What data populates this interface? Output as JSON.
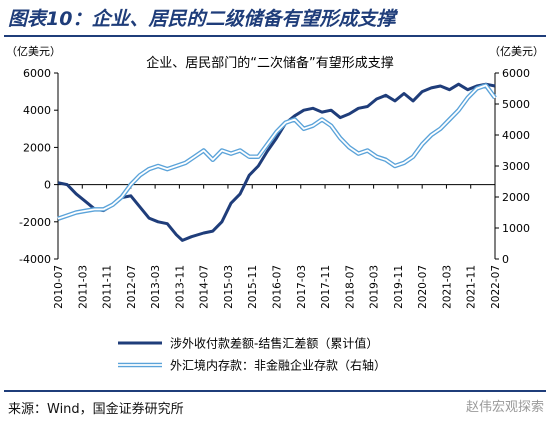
{
  "figure": {
    "heading": "图表10：企业、居民的二级储备有望形成支撑",
    "source": "来源：Wind，国金证券研究所",
    "watermark": "赵伟宏观探索"
  },
  "chart_data": {
    "type": "line",
    "title": "企业、居民部门的“二次储备”有望形成支撑",
    "y_left_unit": "（亿美元）",
    "y_right_unit": "（亿美元）",
    "y_left_lim": [
      -4000,
      6000
    ],
    "y_left_ticks": [
      "6000",
      "4000",
      "2000",
      "0",
      "-2000",
      "-4000"
    ],
    "y_right_lim": [
      0,
      6000
    ],
    "y_right_ticks": [
      "6000",
      "5000",
      "4000",
      "3000",
      "2000",
      "1000",
      "0"
    ],
    "x_ticks": [
      "2010-07",
      "2011-03",
      "2011-11",
      "2012-07",
      "2013-03",
      "2013-11",
      "2014-07",
      "2015-03",
      "2015-11",
      "2016-07",
      "2017-03",
      "2017-11",
      "2018-07",
      "2019-03",
      "2019-11",
      "2020-07",
      "2021-03",
      "2021-11",
      "2022-07"
    ],
    "legend_position": "bottom",
    "colors": {
      "left_series": "#1f3d7a",
      "right_series": "#5ba3d9",
      "axis": "#000000"
    },
    "series": [
      {
        "name": "涉外收付款差额-结售汇差额（累计值）",
        "axis": "left",
        "points": [
          [
            "2010-07",
            100
          ],
          [
            "2010-10",
            0
          ],
          [
            "2011-01",
            -500
          ],
          [
            "2011-04",
            -900
          ],
          [
            "2011-07",
            -1300
          ],
          [
            "2011-10",
            -1400
          ],
          [
            "2012-01",
            -1100
          ],
          [
            "2012-04",
            -700
          ],
          [
            "2012-07",
            -600
          ],
          [
            "2012-10",
            -1200
          ],
          [
            "2013-01",
            -1800
          ],
          [
            "2013-04",
            -2000
          ],
          [
            "2013-07",
            -2100
          ],
          [
            "2013-10",
            -2700
          ],
          [
            "2013-12",
            -3000
          ],
          [
            "2014-03",
            -2800
          ],
          [
            "2014-07",
            -2600
          ],
          [
            "2014-10",
            -2500
          ],
          [
            "2015-01",
            -2000
          ],
          [
            "2015-04",
            -1000
          ],
          [
            "2015-07",
            -500
          ],
          [
            "2015-10",
            500
          ],
          [
            "2016-01",
            1000
          ],
          [
            "2016-04",
            1800
          ],
          [
            "2016-07",
            2500
          ],
          [
            "2016-10",
            3300
          ],
          [
            "2017-01",
            3700
          ],
          [
            "2017-04",
            4000
          ],
          [
            "2017-07",
            4100
          ],
          [
            "2017-10",
            3900
          ],
          [
            "2018-01",
            4000
          ],
          [
            "2018-04",
            3600
          ],
          [
            "2018-07",
            3800
          ],
          [
            "2018-10",
            4100
          ],
          [
            "2019-01",
            4200
          ],
          [
            "2019-04",
            4600
          ],
          [
            "2019-07",
            4800
          ],
          [
            "2019-10",
            4500
          ],
          [
            "2020-01",
            4900
          ],
          [
            "2020-04",
            4500
          ],
          [
            "2020-07",
            5000
          ],
          [
            "2020-10",
            5200
          ],
          [
            "2021-01",
            5300
          ],
          [
            "2021-04",
            5100
          ],
          [
            "2021-07",
            5400
          ],
          [
            "2021-10",
            5100
          ],
          [
            "2022-01",
            5300
          ],
          [
            "2022-04",
            5400
          ],
          [
            "2022-07",
            5300
          ]
        ]
      },
      {
        "name": "外汇境内存款：非金融企业存款（右轴）",
        "axis": "right",
        "points": [
          [
            "2010-07",
            1300
          ],
          [
            "2010-10",
            1400
          ],
          [
            "2011-01",
            1500
          ],
          [
            "2011-04",
            1550
          ],
          [
            "2011-07",
            1600
          ],
          [
            "2011-10",
            1600
          ],
          [
            "2012-01",
            1750
          ],
          [
            "2012-04",
            2000
          ],
          [
            "2012-07",
            2400
          ],
          [
            "2012-10",
            2700
          ],
          [
            "2013-01",
            2900
          ],
          [
            "2013-04",
            3000
          ],
          [
            "2013-07",
            2900
          ],
          [
            "2013-10",
            3000
          ],
          [
            "2014-01",
            3100
          ],
          [
            "2014-04",
            3300
          ],
          [
            "2014-07",
            3500
          ],
          [
            "2014-10",
            3200
          ],
          [
            "2015-01",
            3500
          ],
          [
            "2015-04",
            3400
          ],
          [
            "2015-07",
            3500
          ],
          [
            "2015-10",
            3300
          ],
          [
            "2016-01",
            3300
          ],
          [
            "2016-04",
            3700
          ],
          [
            "2016-07",
            4100
          ],
          [
            "2016-10",
            4400
          ],
          [
            "2017-01",
            4500
          ],
          [
            "2017-04",
            4200
          ],
          [
            "2017-07",
            4300
          ],
          [
            "2017-10",
            4500
          ],
          [
            "2018-01",
            4300
          ],
          [
            "2018-04",
            3900
          ],
          [
            "2018-07",
            3600
          ],
          [
            "2018-10",
            3400
          ],
          [
            "2019-01",
            3500
          ],
          [
            "2019-04",
            3300
          ],
          [
            "2019-07",
            3200
          ],
          [
            "2019-10",
            3000
          ],
          [
            "2020-01",
            3100
          ],
          [
            "2020-04",
            3300
          ],
          [
            "2020-07",
            3700
          ],
          [
            "2020-10",
            4000
          ],
          [
            "2021-01",
            4200
          ],
          [
            "2021-04",
            4500
          ],
          [
            "2021-07",
            4800
          ],
          [
            "2021-10",
            5200
          ],
          [
            "2022-01",
            5500
          ],
          [
            "2022-04",
            5600
          ],
          [
            "2022-07",
            5200
          ]
        ]
      }
    ]
  }
}
